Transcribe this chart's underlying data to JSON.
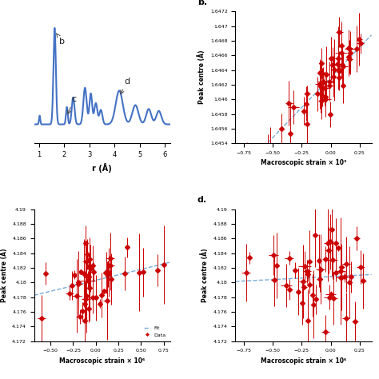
{
  "panel_a": {
    "xlabel": "r (Å)",
    "xlim": [
      0.8,
      6.2
    ],
    "line_color": "#4472c4",
    "linewidth": 1.5
  },
  "panel_b": {
    "label": "b.",
    "xlabel": "Macroscopic strain × 10³",
    "ylabel": "Peak centre (Å)",
    "xlim": [
      -0.82,
      0.35
    ],
    "ylim": [
      1.6454,
      1.6472
    ],
    "yticks": [
      1.6454,
      1.6456,
      1.6458,
      1.646,
      1.6462,
      1.6464,
      1.6466,
      1.6468,
      1.647,
      1.6472
    ],
    "ytick_labels": [
      "1.6454",
      "1.6456",
      "1.6458",
      "1.646",
      "1.6462",
      "1.6464",
      "1.6466",
      "1.6468",
      "1.647",
      "1.6472"
    ],
    "xticks": [
      -0.75,
      -0.5,
      -0.25,
      0,
      0.25
    ],
    "fit_slope": 0.00165,
    "fit_intercept": 1.6463,
    "fit_color": "#7aaddb",
    "data_color": "#cc0000",
    "marker": "D",
    "markersize": 3
  },
  "panel_c": {
    "xlabel": "Macroscopic strain × 10⁶",
    "ylabel": "Peak centre (Å)",
    "xlim": [
      -0.68,
      0.82
    ],
    "ylim": [
      4.172,
      4.19
    ],
    "yticks": [
      4.172,
      4.174,
      4.176,
      4.178,
      4.18,
      4.182,
      4.184,
      4.186,
      4.188,
      4.19
    ],
    "ytick_labels": [
      "4.172",
      "4.174",
      "4.176",
      "4.178",
      "4.18",
      "4.182",
      "4.184",
      "4.186",
      "4.188",
      "4.19"
    ],
    "xticks": [
      -0.5,
      -0.25,
      0,
      0.25,
      0.5,
      0.75
    ],
    "fit_slope": 0.003,
    "fit_intercept": 4.1803,
    "fit_color": "#7aaddb",
    "data_color": "#cc0000",
    "marker": "D",
    "markersize": 3,
    "legend_fit": "Fit",
    "legend_data": "Data"
  },
  "panel_d": {
    "label": "d.",
    "xlabel": "Macroscopic strain × 10⁶",
    "ylabel": "Peak centre (Å)",
    "xlim": [
      -0.82,
      0.35
    ],
    "ylim": [
      4.172,
      4.19
    ],
    "yticks": [
      4.172,
      4.174,
      4.176,
      4.178,
      4.18,
      4.182,
      4.184,
      4.186,
      4.188,
      4.19
    ],
    "ytick_labels": [
      "4.172",
      "4.174",
      "4.176",
      "4.178",
      "4.18",
      "4.182",
      "4.184",
      "4.186",
      "4.188",
      "4.19"
    ],
    "xticks": [
      -0.75,
      -0.5,
      -0.25,
      0,
      0.25
    ],
    "fit_slope": 0.0008,
    "fit_intercept": 4.1808,
    "fit_color": "#7aaddb",
    "data_color": "#cc0000",
    "marker": "D",
    "markersize": 3
  },
  "background_color": "#ffffff",
  "tick_fontsize": 6,
  "label_fontsize": 7,
  "panel_label_fontsize": 8
}
